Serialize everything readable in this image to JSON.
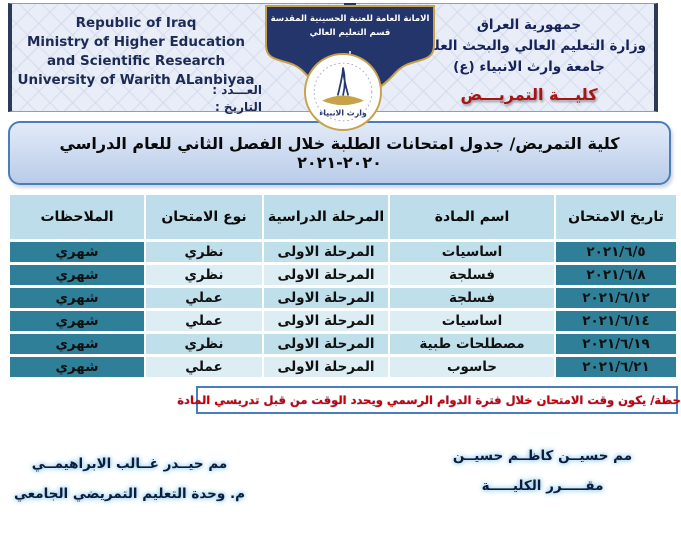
{
  "header": {
    "english_lines": [
      "Republic of Iraq",
      "Ministry of Higher Education",
      "and Scientific Research",
      "University of Warith ALanbiyaa"
    ],
    "number_label": "العـــدد :",
    "date_label": "التاريخ :",
    "emblem": {
      "line1": "الامانة العامة للعتبة الحسينية المقدسة",
      "line2": "قسم التعليم العالي",
      "logo_text": "وارث الانبياء"
    },
    "arabic_lines": [
      "جمهورية العراق",
      "وزارة التعليم العالي والبحث العلمي",
      "جامعة وارث الانبياء (ع)"
    ],
    "college": "كليـــة التمريـــض"
  },
  "title": "كلية التمريض/ جدول امتحانات الطلبة خلال الفصل الثاني للعام الدراسي ٢٠٢٠-٢٠٢١",
  "table": {
    "columns": [
      "تاريخ الامتحان",
      "اسم المادة",
      "المرحلة الدراسية",
      "نوع الامتحان",
      "الملاحظات"
    ],
    "row_keys": [
      "date",
      "subject",
      "stage",
      "type",
      "notes"
    ],
    "rows": [
      {
        "date": "٢٠٢١/٦/٥",
        "subject": "اساسيات",
        "stage": "المرحلة الاولى",
        "type": "نظري",
        "notes": "شهري"
      },
      {
        "date": "٢٠٢١/٦/٨",
        "subject": "فسلجة",
        "stage": "المرحلة الاولى",
        "type": "نظري",
        "notes": "شهري"
      },
      {
        "date": "٢٠٢١/٦/١٢",
        "subject": "فسلجة",
        "stage": "المرحلة الاولى",
        "type": "عملي",
        "notes": "شهري"
      },
      {
        "date": "٢٠٢١/٦/١٤",
        "subject": "اساسيات",
        "stage": "المرحلة الاولى",
        "type": "عملي",
        "notes": "شهري"
      },
      {
        "date": "٢٠٢١/٦/١٩",
        "subject": "مصطلحات طبية",
        "stage": "المرحلة الاولى",
        "type": "نظري",
        "notes": "شهري"
      },
      {
        "date": "٢٠٢١/٦/٢١",
        "subject": "حاسوب",
        "stage": "المرحلة الاولى",
        "type": "عملي",
        "notes": "شهري"
      }
    ]
  },
  "note": "ملاحظة/ يكون وقت الامتحان خلال فترة الدوام الرسمي ويحدد الوقت من قبل تدريسي المادة",
  "signatures": {
    "right": {
      "name": "مم حسيــن كاظــم حسيــن",
      "title": "مقـــــرر الكليـــــة"
    },
    "left": {
      "name": "مم حيــدر غــالب الابراهيمــي",
      "title": "م. وحدة التعليم التمريضي الجامعي"
    }
  },
  "colors": {
    "teal_cell": "#2f7f98",
    "row_light": "#bfdfea",
    "row_lighter": "#dcedf4",
    "header_band": "#bcdde9",
    "accent_blue_border": "#4a7ebb",
    "college_red": "#a81414",
    "navy_text": "#16235a",
    "note_red": "#cc0000",
    "emblem_navy": "#23356b",
    "emblem_gold": "#c8a24b"
  }
}
